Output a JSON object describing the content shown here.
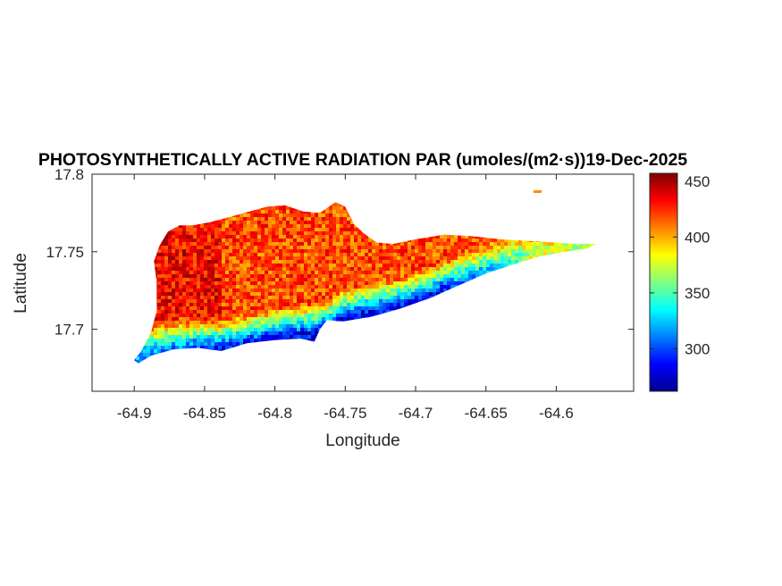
{
  "chart_data": {
    "type": "heatmap",
    "title": "PHOTOSYNTHETICALLY ACTIVE RADIATION PAR (umoles/(m2·s))19-Dec-2025",
    "xlabel": "Longitude",
    "ylabel": "Latitude",
    "xlim": [
      -64.93,
      -64.545
    ],
    "ylim": [
      17.66,
      17.8
    ],
    "x_ticks": [
      {
        "value": -64.9,
        "label": "-64.9"
      },
      {
        "value": -64.85,
        "label": "-64.85"
      },
      {
        "value": -64.8,
        "label": "-64.8"
      },
      {
        "value": -64.75,
        "label": "-64.75"
      },
      {
        "value": -64.7,
        "label": "-64.7"
      },
      {
        "value": -64.65,
        "label": "-64.65"
      },
      {
        "value": -64.6,
        "label": "-64.6"
      }
    ],
    "y_ticks": [
      {
        "value": 17.8,
        "label": "17.8"
      },
      {
        "value": 17.75,
        "label": "17.75"
      },
      {
        "value": 17.7,
        "label": "17.7"
      }
    ],
    "colorbar": {
      "colormap": "jet",
      "clim": [
        262,
        457
      ],
      "ticks": [
        {
          "value": 300,
          "label": "300"
        },
        {
          "value": 350,
          "label": "350"
        },
        {
          "value": 400,
          "label": "400"
        },
        {
          "value": 450,
          "label": "450"
        }
      ]
    },
    "grid": false,
    "island_outline_lonlat": [
      [
        -64.9,
        17.68
      ],
      [
        -64.895,
        17.686
      ],
      [
        -64.888,
        17.698
      ],
      [
        -64.884,
        17.712
      ],
      [
        -64.884,
        17.73
      ],
      [
        -64.886,
        17.744
      ],
      [
        -64.882,
        17.754
      ],
      [
        -64.876,
        17.763
      ],
      [
        -64.868,
        17.767
      ],
      [
        -64.858,
        17.767
      ],
      [
        -64.846,
        17.769
      ],
      [
        -64.834,
        17.772
      ],
      [
        -64.818,
        17.776
      ],
      [
        -64.806,
        17.779
      ],
      [
        -64.793,
        17.78
      ],
      [
        -64.78,
        17.776
      ],
      [
        -64.768,
        17.775
      ],
      [
        -64.757,
        17.782
      ],
      [
        -64.75,
        17.779
      ],
      [
        -64.744,
        17.768
      ],
      [
        -64.737,
        17.762
      ],
      [
        -64.728,
        17.756
      ],
      [
        -64.716,
        17.755
      ],
      [
        -64.7,
        17.758
      ],
      [
        -64.68,
        17.761
      ],
      [
        -64.66,
        17.76
      ],
      [
        -64.64,
        17.758
      ],
      [
        -64.622,
        17.757
      ],
      [
        -64.602,
        17.756
      ],
      [
        -64.585,
        17.755
      ],
      [
        -64.572,
        17.755
      ],
      [
        -64.578,
        17.752
      ],
      [
        -64.594,
        17.75
      ],
      [
        -64.612,
        17.747
      ],
      [
        -64.63,
        17.742
      ],
      [
        -64.65,
        17.736
      ],
      [
        -64.67,
        17.728
      ],
      [
        -64.69,
        17.72
      ],
      [
        -64.712,
        17.713
      ],
      [
        -64.732,
        17.708
      ],
      [
        -64.752,
        17.705
      ],
      [
        -64.763,
        17.706
      ],
      [
        -64.768,
        17.7
      ],
      [
        -64.772,
        17.692
      ],
      [
        -64.782,
        17.694
      ],
      [
        -64.8,
        17.693
      ],
      [
        -64.82,
        17.691
      ],
      [
        -64.838,
        17.686
      ],
      [
        -64.855,
        17.688
      ],
      [
        -64.872,
        17.687
      ],
      [
        -64.888,
        17.683
      ],
      [
        -64.897,
        17.678
      ]
    ],
    "field_model": {
      "south_coast_min_lon": [
        -64.9,
        -64.8,
        -64.72,
        -64.65,
        -64.6
      ],
      "note_values": [
        330,
        290,
        285,
        330,
        380
      ],
      "interior_max": 440
    }
  }
}
